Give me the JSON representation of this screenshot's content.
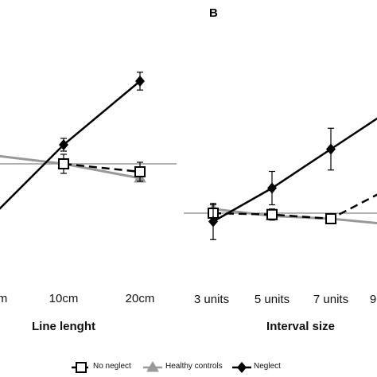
{
  "panels": {
    "a": {
      "letter": ""
    },
    "b": {
      "letter": "B"
    }
  },
  "legend": {
    "items": [
      {
        "label": "No neglect",
        "marker": "open-square",
        "line": "dashed",
        "color": "#000000"
      },
      {
        "label": "Healthy controls",
        "marker": "triangle",
        "line": "solid",
        "color": "#999999"
      },
      {
        "label": "Neglect",
        "marker": "diamond",
        "line": "solid",
        "color": "#000000"
      }
    ]
  },
  "chart_data": [
    {
      "type": "line",
      "title": "",
      "xlabel": "Line lenght",
      "ylabel": "",
      "categories": [
        "m",
        "10cm",
        "20cm"
      ],
      "grid": false,
      "series": [
        {
          "name": "No neglect",
          "values": [
            null,
            0,
            -0.25
          ],
          "errors": [
            null,
            0.3,
            0.3
          ],
          "color": "#000000",
          "dash": true
        },
        {
          "name": "Healthy controls",
          "values": [
            0.3,
            0,
            -0.45
          ],
          "errors": [
            null,
            0.12,
            0.12
          ],
          "color": "#999999",
          "dash": false
        },
        {
          "name": "Neglect",
          "values": [
            -1.9,
            0.6,
            2.6
          ],
          "errors": [
            null,
            0.2,
            0.28
          ],
          "color": "#000000",
          "dash": false
        }
      ]
    },
    {
      "type": "line",
      "title": "",
      "xlabel": "Interval size",
      "ylabel": "",
      "categories": [
        "3 units",
        "5 units",
        "7 units",
        "9"
      ],
      "grid": false,
      "series": [
        {
          "name": "No neglect",
          "values": [
            0,
            -0.05,
            -0.2,
            0.9
          ],
          "errors": [
            0.3,
            0.2,
            0.15,
            null
          ],
          "color": "#000000",
          "dash": true
        },
        {
          "name": "Healthy controls",
          "values": [
            0.15,
            -0.1,
            -0.2,
            -0.4
          ],
          "errors": [
            null,
            null,
            0.12,
            null
          ],
          "color": "#999999",
          "dash": false
        },
        {
          "name": "Neglect",
          "values": [
            -0.3,
            0.9,
            2.3,
            3.7
          ],
          "errors": [
            0.65,
            0.6,
            0.75,
            null
          ],
          "color": "#000000",
          "dash": false
        }
      ]
    }
  ]
}
